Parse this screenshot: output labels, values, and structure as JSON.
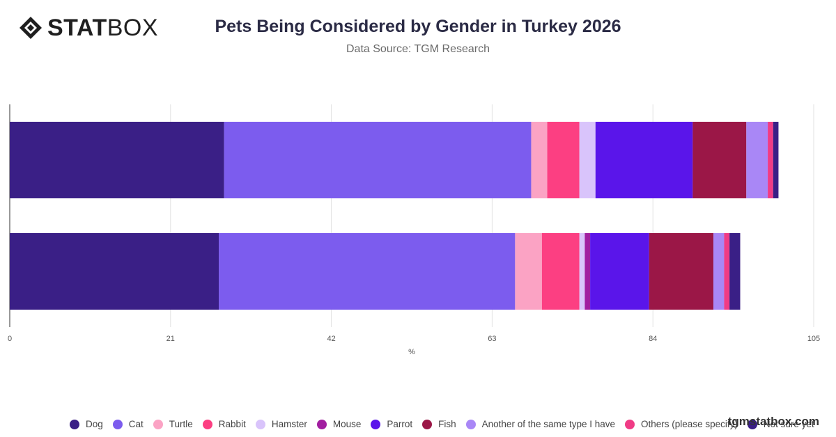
{
  "brand": {
    "logo_bold": "STAT",
    "logo_light": "BOX",
    "watermark": "tgmstatbox.com"
  },
  "chart_data": {
    "type": "bar",
    "orientation": "horizontal",
    "stacked": true,
    "title": "Pets Being Considered by Gender in Turkey 2026",
    "subtitle": "Data Source: TGM Research",
    "xlabel": "%",
    "ylabel": "",
    "xlim": [
      0,
      105
    ],
    "xticks": [
      "0",
      "21",
      "42",
      "63",
      "84",
      "105"
    ],
    "categories": [
      "",
      ""
    ],
    "grid": true,
    "legend_position": "bottom",
    "series": [
      {
        "name": "Dog",
        "color": "#3a1f86",
        "values": [
          28.0,
          27.3
        ]
      },
      {
        "name": "Cat",
        "color": "#7c5cee",
        "values": [
          40.1,
          38.7
        ]
      },
      {
        "name": "Turtle",
        "color": "#fba3c4",
        "values": [
          2.1,
          3.5
        ]
      },
      {
        "name": "Rabbit",
        "color": "#fc3f82",
        "values": [
          4.2,
          4.9
        ]
      },
      {
        "name": "Hamster",
        "color": "#d9c4fb",
        "values": [
          2.1,
          0.7
        ]
      },
      {
        "name": "Mouse",
        "color": "#a11ea0",
        "values": [
          0.0,
          0.7
        ]
      },
      {
        "name": "Parrot",
        "color": "#5a15ea",
        "values": [
          12.7,
          7.7
        ]
      },
      {
        "name": "Fish",
        "color": "#9b1747",
        "values": [
          7.0,
          8.4
        ]
      },
      {
        "name": "Another of the same type I have",
        "color": "#a987f6",
        "values": [
          2.8,
          1.4
        ]
      },
      {
        "name": "Others (please specify)",
        "color": "#f03b85",
        "values": [
          0.7,
          0.7
        ]
      },
      {
        "name": "Not sure yet",
        "color": "#3a1f86",
        "values": [
          0.7,
          1.4
        ]
      }
    ]
  }
}
